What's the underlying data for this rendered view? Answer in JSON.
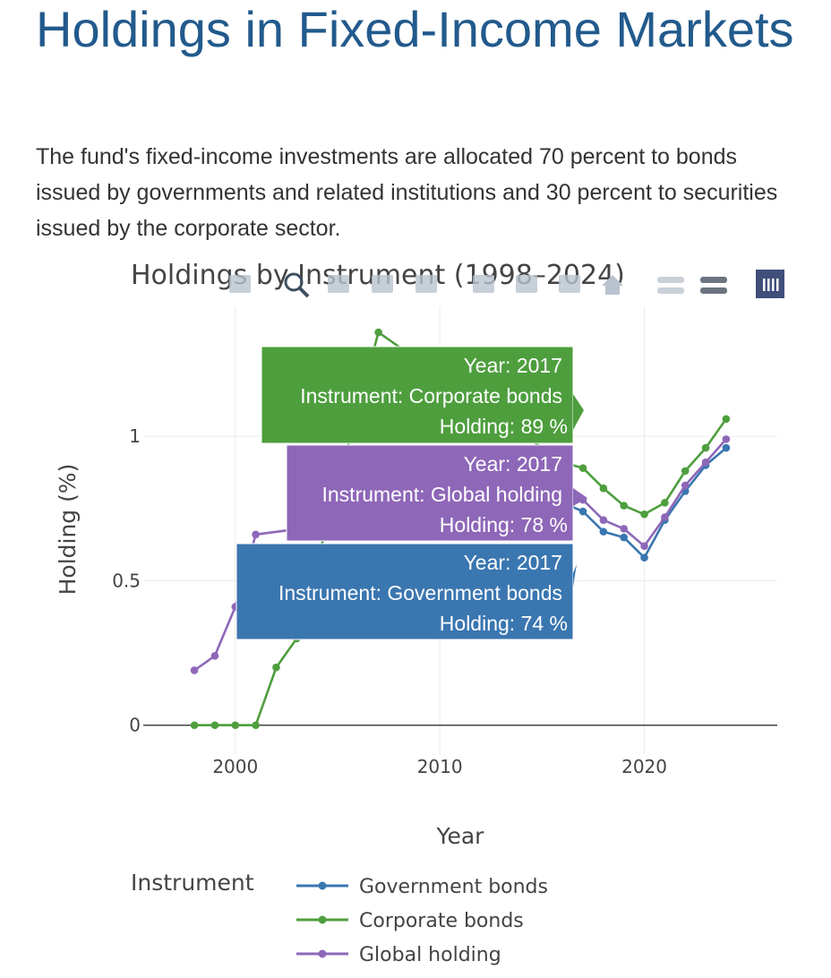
{
  "page": {
    "title": "Holdings in Fixed-Income Markets",
    "intro": "The fund's fixed-income investments are allocated 70 percent to bonds issued by governments and related institutions and 30 percent to securities issued by the corporate sector."
  },
  "colors": {
    "government": "#3a76b0",
    "corporate": "#4e9e3e",
    "global": "#8e67b8",
    "title": "#225a8c"
  },
  "modebar": {
    "icons": [
      "camera-icon",
      "zoom-icon",
      "pan-icon",
      "box-select-icon",
      "lasso-icon",
      "zoom-in-icon",
      "zoom-out-icon",
      "autoscale-icon",
      "home-icon",
      "spike-lines-icon",
      "compare-hover-icon",
      "plotly-logo-icon"
    ]
  },
  "chart_data": {
    "type": "line",
    "title": "Holdings by Instrument (1998–2024)",
    "xlabel": "Year",
    "ylabel": "Holding (%)",
    "xlim": [
      1995.5,
      2026.5
    ],
    "ylim": [
      -0.1,
      1.45
    ],
    "xticks": [
      2000,
      2010,
      2020
    ],
    "yticks": [
      0,
      0.5,
      1
    ],
    "yticklabels": [
      "0",
      "0.5",
      "1"
    ],
    "grid": true,
    "legend": {
      "title": "Instrument",
      "position": "bottom-left"
    },
    "series": [
      {
        "name": "Government bonds",
        "color": "#3a76b0",
        "x": [
          2016,
          2017,
          2018,
          2019,
          2020,
          2021,
          2022,
          2023,
          2024
        ],
        "y": [
          0.77,
          0.74,
          0.67,
          0.65,
          0.58,
          0.71,
          0.81,
          0.9,
          0.96
        ]
      },
      {
        "name": "Corporate bonds",
        "color": "#4e9e3e",
        "x": [
          1998,
          1999,
          2000,
          2001,
          2002,
          2003,
          2007,
          2016,
          2017,
          2018,
          2019,
          2020,
          2021,
          2022,
          2023,
          2024
        ],
        "y": [
          0,
          0,
          0,
          0,
          0.2,
          0.3,
          1.36,
          0.91,
          0.89,
          0.82,
          0.76,
          0.73,
          0.77,
          0.88,
          0.96,
          1.06
        ]
      },
      {
        "name": "Global holding",
        "color": "#8e67b8",
        "x": [
          1998,
          1999,
          2000,
          2001,
          2016,
          2017,
          2018,
          2019,
          2020,
          2021,
          2022,
          2023,
          2024
        ],
        "y": [
          0.19,
          0.24,
          0.41,
          0.66,
          0.8,
          0.78,
          0.71,
          0.68,
          0.62,
          0.72,
          0.83,
          0.91,
          0.99
        ]
      }
    ],
    "tooltips": [
      {
        "series": "Corporate bonds",
        "color": "#4e9e3e",
        "lines": [
          "Year: 2017",
          "Instrument: Corporate bonds",
          "Holding: 89 %"
        ]
      },
      {
        "series": "Global holding",
        "color": "#8e67b8",
        "lines": [
          "Year: 2017",
          "Instrument: Global holding",
          "Holding: 78 %"
        ]
      },
      {
        "series": "Government bonds",
        "color": "#3a76b0",
        "lines": [
          "Year: 2017",
          "Instrument: Government bonds",
          "Holding: 74 %"
        ]
      }
    ]
  }
}
